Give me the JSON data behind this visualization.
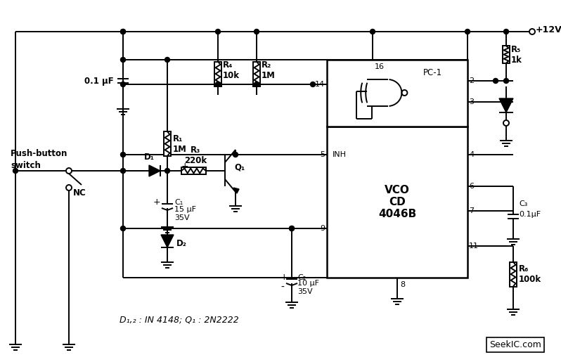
{
  "bg_color": "#ffffff",
  "line_color": "#000000",
  "watermark": "SeekIC.com",
  "C0_label": "0.1 μF",
  "C1_label": "15 μF\n35V",
  "C1_name": "C₁",
  "C2_label": "10 μF\n35V",
  "C2_name": "C₂",
  "C3_label": "0.1μF",
  "C3_name": "C₃",
  "R1_label": "R₁\n1M",
  "R2_label": "R₂\n1M",
  "R3_label": "R₃\n220k",
  "R4_label": "R₄\n10k",
  "R5_label": "R₅\n1k",
  "R6_label": "R₆\n100k",
  "D1_label": "D₁",
  "D2_label": "D₂",
  "Q1_label": "Q₁",
  "VCO_label": "VCO\nCD\n4046B",
  "PC1_label": "PC-1",
  "INH_label": "INH",
  "V12_label": "+12V",
  "NC_label": "NC",
  "switch_label": "Push-button\nswitch",
  "note_label": "D₁,₂ : IN 4148; Q₁ : 2N2222",
  "pin2": "2",
  "pin3": "3",
  "pin4": "4",
  "pin5": "5",
  "pin6": "6",
  "pin7": "7",
  "pin8": "8",
  "pin9": "9",
  "pin11": "11",
  "pin14": "14",
  "pin16": "16"
}
